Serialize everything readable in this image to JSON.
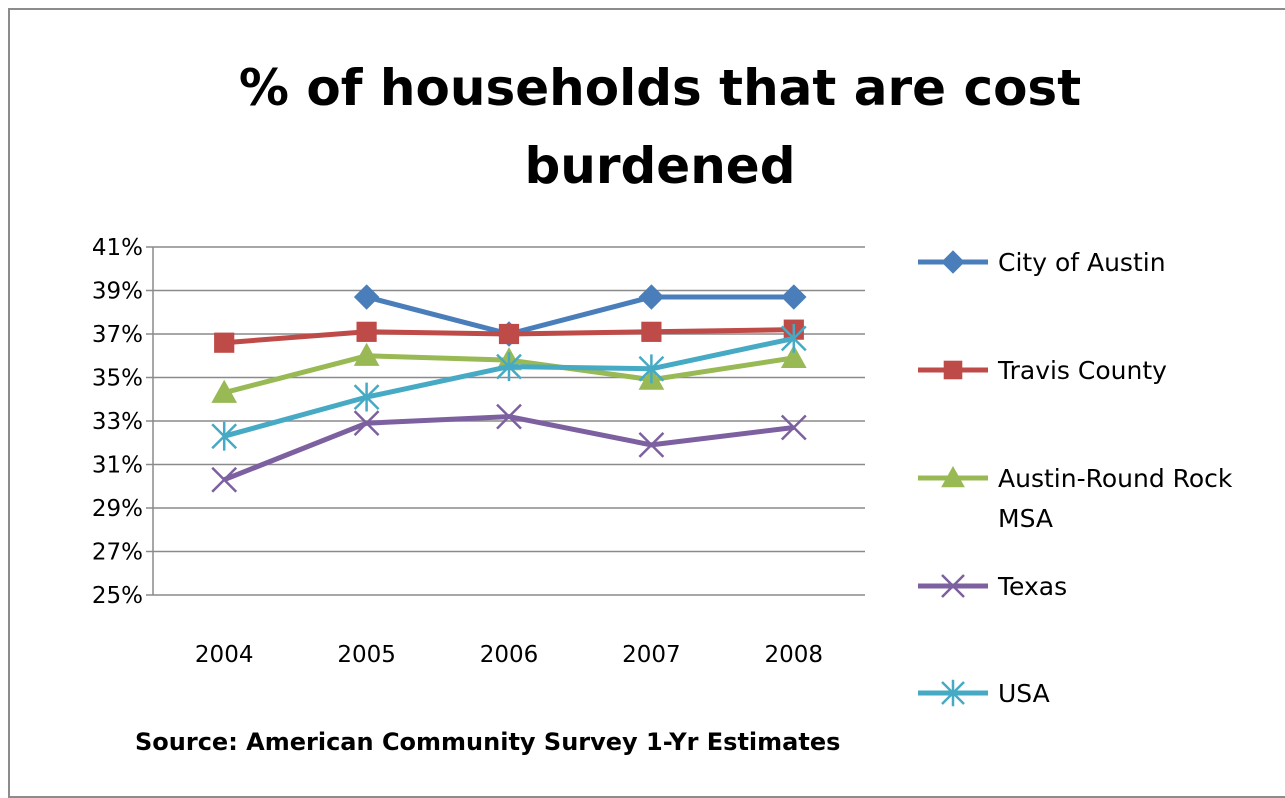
{
  "chart_data": {
    "type": "line",
    "title_lines": [
      "% of households that are cost",
      "burdened"
    ],
    "categories": [
      "2004",
      "2005",
      "2006",
      "2007",
      "2008"
    ],
    "y_ticks": [
      "25%",
      "27%",
      "29%",
      "31%",
      "33%",
      "35%",
      "37%",
      "39%",
      "41%"
    ],
    "ylim": [
      25,
      41
    ],
    "y_unit": "%",
    "grid": true,
    "legend_position": "right",
    "series": [
      {
        "name": "City of Austin",
        "name_lines": [
          "City of Austin"
        ],
        "color": "#4a7ebb",
        "marker": "diamond",
        "values": [
          null,
          38.7,
          37.0,
          38.7,
          38.7
        ]
      },
      {
        "name": "Travis County",
        "name_lines": [
          "Travis County"
        ],
        "color": "#be4b48",
        "marker": "square",
        "values": [
          36.6,
          37.1,
          37.0,
          37.1,
          37.2
        ]
      },
      {
        "name": "Austin-Round Rock MSA",
        "name_lines": [
          "Austin-Round Rock",
          "MSA"
        ],
        "color": "#98b954",
        "marker": "triangle",
        "values": [
          34.3,
          36.0,
          35.8,
          34.9,
          35.9
        ]
      },
      {
        "name": "Texas",
        "name_lines": [
          "Texas"
        ],
        "color": "#7d60a0",
        "marker": "x",
        "values": [
          30.3,
          32.9,
          33.2,
          31.9,
          32.7
        ]
      },
      {
        "name": "USA",
        "name_lines": [
          "USA"
        ],
        "color": "#46aac5",
        "marker": "star",
        "values": [
          32.3,
          34.1,
          35.5,
          35.4,
          36.8
        ]
      }
    ],
    "source": "Source: American Community Survey 1-Yr Estimates"
  }
}
